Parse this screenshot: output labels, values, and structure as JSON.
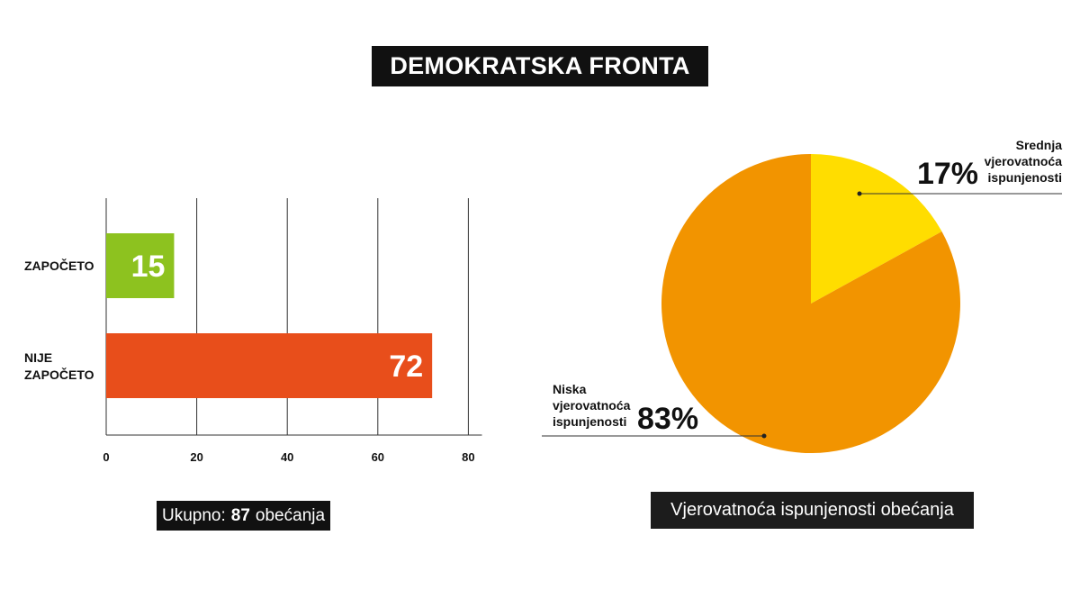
{
  "title": "DEMOKRATSKA FRONTA",
  "chart_data": [
    {
      "type": "bar",
      "orientation": "horizontal",
      "categories": [
        [
          "ZAPOČETO"
        ],
        [
          "NIJE",
          "ZAPOČETO"
        ]
      ],
      "values": [
        15,
        72
      ],
      "colors": [
        "#8dc21f",
        "#e84e1b"
      ],
      "xticks": [
        0,
        20,
        40,
        60,
        80
      ],
      "xlim": [
        0,
        83
      ],
      "grid": true,
      "caption": {
        "prefix": "Ukupno:",
        "total": "87",
        "suffix": "obećanja"
      }
    },
    {
      "type": "pie",
      "slices": [
        {
          "label": [
            "Srednja",
            "vjerovatnoća",
            "ispunjenosti"
          ],
          "value": 17,
          "pct_text": "17%",
          "color": "#ffdd00"
        },
        {
          "label": [
            "Niska",
            "vjerovatnoća",
            "ispunjenosti"
          ],
          "value": 83,
          "pct_text": "83%",
          "color": "#f29400"
        }
      ],
      "caption": "Vjerovatnoća ispunjenosti obećanja"
    }
  ]
}
